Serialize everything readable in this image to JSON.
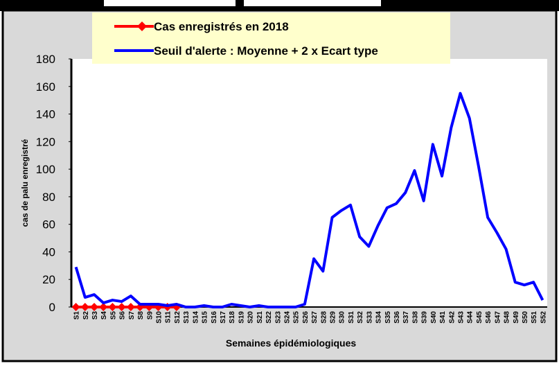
{
  "chart_data": {
    "type": "line",
    "y_label": "cas de palu enregistré",
    "x_label": "Semaines épidémiologiques",
    "categories": [
      "S1",
      "S2",
      "S3",
      "S4",
      "S5",
      "S6",
      "S7",
      "S8",
      "S9",
      "S10",
      "S11",
      "S12",
      "S13",
      "S14",
      "S15",
      "S16",
      "S17",
      "S18",
      "S19",
      "S20",
      "S21",
      "S22",
      "S23",
      "S24",
      "S25",
      "S26",
      "S27",
      "S28",
      "S29",
      "S30",
      "S31",
      "S32",
      "S33",
      "S34",
      "S35",
      "S36",
      "S37",
      "S38",
      "S39",
      "S40",
      "S41",
      "S42",
      "S43",
      "S44",
      "S45",
      "S46",
      "S47",
      "S48",
      "S49",
      "S50",
      "S51",
      "S52"
    ],
    "series": [
      {
        "name": "Cas enregistrés en 2018",
        "color": "#ff0000",
        "marker": "diamond",
        "values": [
          0,
          0,
          0,
          0,
          0,
          0,
          0,
          0,
          0,
          0,
          0,
          0,
          null,
          null,
          null,
          null,
          null,
          null,
          null,
          null,
          null,
          null,
          null,
          null,
          null,
          null,
          null,
          null,
          null,
          null,
          null,
          null,
          null,
          null,
          null,
          null,
          null,
          null,
          null,
          null,
          null,
          null,
          null,
          null,
          null,
          null,
          null,
          null,
          null,
          null,
          null,
          null
        ]
      },
      {
        "name": "Seuil d'alerte : Moyenne + 2 x Ecart type",
        "color": "#0000ff",
        "values": [
          29,
          7,
          9,
          3,
          5,
          4,
          8,
          2,
          2,
          2,
          1,
          2,
          0,
          0,
          1,
          0,
          0,
          2,
          1,
          0,
          1,
          0,
          0,
          0,
          0,
          2,
          35,
          26,
          65,
          70,
          74,
          51,
          44,
          59,
          72,
          75,
          83,
          99,
          77,
          118,
          95,
          130,
          155,
          137,
          102,
          65,
          54,
          42,
          18,
          16,
          18,
          5
        ]
      }
    ],
    "ylim": [
      0,
      180
    ],
    "yticks": [
      0,
      20,
      40,
      60,
      80,
      100,
      120,
      140,
      160,
      180
    ],
    "grid": false
  }
}
